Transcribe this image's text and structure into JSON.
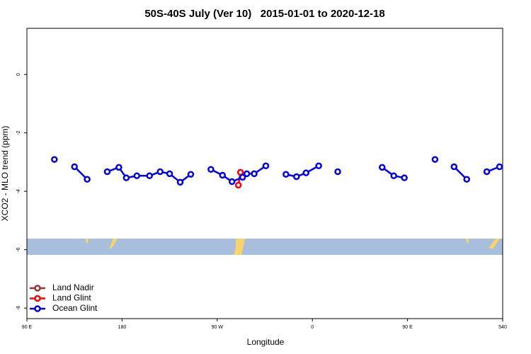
{
  "chart_data": {
    "type": "line",
    "title": "50S-40S July (Ver 10)   2015-01-01 to 2020-12-18",
    "x_label": "Longitude",
    "y_label": "XCO2 - MLO trend (ppm)",
    "xlim": [
      90,
      540
    ],
    "xticks": [
      {
        "value": 90,
        "label": "90 E"
      },
      180,
      {
        "value": 270,
        "label": "90 W"
      },
      {
        "value": 360,
        "label": "0"
      },
      {
        "value": 450,
        "label": "90 E"
      },
      540
    ],
    "ylim": [
      -8.36,
      1.58
    ],
    "yticks": [
      0,
      -2,
      -4,
      -6,
      -8
    ],
    "legend": "bottom-left",
    "series": [
      {
        "name": "Land Nadir",
        "color": "#993333",
        "x": [],
        "values": []
      },
      {
        "name": "Land Glint",
        "color": "#ff0000",
        "x": [
          290,
          292
        ],
        "values": [
          -3.79,
          -3.35
        ]
      },
      {
        "name": "Ocean Glint",
        "color": "#0000ee",
        "x": [
          116,
          null,
          135,
          147,
          null,
          166,
          177,
          184,
          194,
          206,
          216,
          225,
          235,
          245,
          null,
          264,
          275,
          284,
          294,
          298,
          305,
          316,
          null,
          335,
          345,
          354,
          366,
          null,
          384,
          null,
          426,
          437,
          447,
          null,
          476,
          null,
          494,
          506,
          null,
          525,
          537
        ],
        "values": [
          -2.91,
          null,
          -3.16,
          -3.59,
          null,
          -3.33,
          -3.18,
          -3.54,
          -3.47,
          -3.47,
          -3.33,
          -3.4,
          -3.69,
          -3.42,
          null,
          -3.25,
          -3.45,
          -3.67,
          -3.52,
          -3.4,
          -3.4,
          -3.13,
          null,
          -3.42,
          -3.5,
          -3.37,
          -3.13,
          null,
          -3.33,
          null,
          -3.18,
          -3.47,
          -3.54,
          null,
          -2.91,
          null,
          -3.16,
          -3.59,
          null,
          -3.33,
          -3.16
        ]
      }
    ]
  }
}
